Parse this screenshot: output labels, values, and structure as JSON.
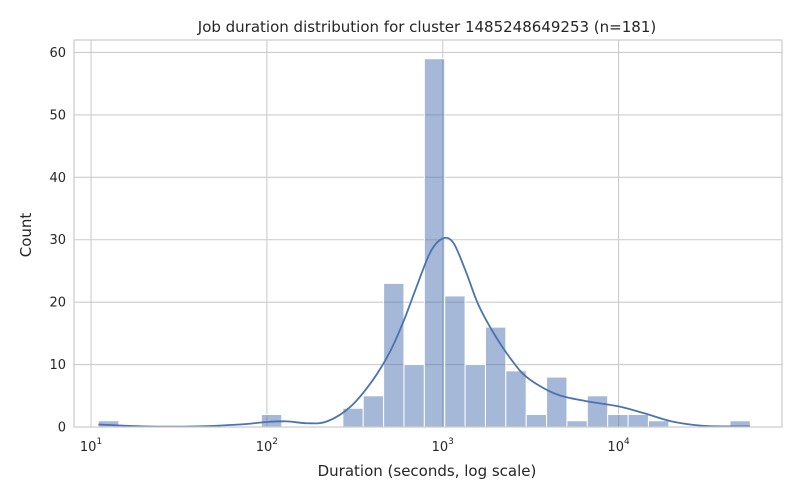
{
  "chart_data": {
    "type": "bar",
    "title": "Job duration distribution for cluster 1485248649253 (n=181)",
    "xlabel": "Duration (seconds, log scale)",
    "ylabel": "Count",
    "xscale": "log",
    "xlim": [
      8,
      85000
    ],
    "ylim": [
      0,
      62
    ],
    "x_ticks": [
      {
        "value": 10,
        "base": "10",
        "exp": "1"
      },
      {
        "value": 100,
        "base": "10",
        "exp": "2"
      },
      {
        "value": 1000,
        "base": "10",
        "exp": "3"
      },
      {
        "value": 10000,
        "base": "10",
        "exp": "4"
      }
    ],
    "y_ticks": [
      0,
      10,
      20,
      30,
      40,
      50,
      60
    ],
    "grid": true,
    "bar_color": "#4c72b0",
    "line_color": "#4c72b0",
    "bins": [
      {
        "x0": 11.0,
        "x1": 14.4,
        "count": 1
      },
      {
        "x0": 14.4,
        "x1": 18.8,
        "count": 0
      },
      {
        "x0": 18.8,
        "x1": 24.5,
        "count": 0
      },
      {
        "x0": 24.5,
        "x1": 32.0,
        "count": 0
      },
      {
        "x0": 32.0,
        "x1": 41.8,
        "count": 0
      },
      {
        "x0": 41.8,
        "x1": 54.6,
        "count": 0
      },
      {
        "x0": 54.6,
        "x1": 71.3,
        "count": 0
      },
      {
        "x0": 71.3,
        "x1": 93.0,
        "count": 0
      },
      {
        "x0": 93.0,
        "x1": 121.5,
        "count": 2
      },
      {
        "x0": 121.5,
        "x1": 158.6,
        "count": 0
      },
      {
        "x0": 158.6,
        "x1": 207.1,
        "count": 0
      },
      {
        "x0": 207.1,
        "x1": 270.4,
        "count": 0
      },
      {
        "x0": 270.4,
        "x1": 353.1,
        "count": 3
      },
      {
        "x0": 353.1,
        "x1": 461.1,
        "count": 5
      },
      {
        "x0": 461.1,
        "x1": 602.0,
        "count": 23
      },
      {
        "x0": 602.0,
        "x1": 786.1,
        "count": 10
      },
      {
        "x0": 786.1,
        "x1": 1026.4,
        "count": 59
      },
      {
        "x0": 1026.4,
        "x1": 1340.2,
        "count": 21
      },
      {
        "x0": 1340.2,
        "x1": 1750.0,
        "count": 10
      },
      {
        "x0": 1750.0,
        "x1": 2285.0,
        "count": 16
      },
      {
        "x0": 2285.0,
        "x1": 2984.0,
        "count": 9
      },
      {
        "x0": 2984.0,
        "x1": 3896.0,
        "count": 2
      },
      {
        "x0": 3896.0,
        "x1": 5087.0,
        "count": 8
      },
      {
        "x0": 5087.0,
        "x1": 6643.0,
        "count": 1
      },
      {
        "x0": 6643.0,
        "x1": 8674.0,
        "count": 5
      },
      {
        "x0": 8674.0,
        "x1": 11326.0,
        "count": 2
      },
      {
        "x0": 11326.0,
        "x1": 14790.0,
        "count": 2
      },
      {
        "x0": 14790.0,
        "x1": 19313.0,
        "count": 1
      },
      {
        "x0": 19313.0,
        "x1": 25218.0,
        "count": 0
      },
      {
        "x0": 25218.0,
        "x1": 32930.0,
        "count": 0
      },
      {
        "x0": 32930.0,
        "x1": 43000.0,
        "count": 0
      },
      {
        "x0": 43000.0,
        "x1": 56150.0,
        "count": 1
      }
    ],
    "kde": {
      "x": [
        11,
        20,
        40,
        70,
        100,
        130,
        170,
        220,
        300,
        400,
        500,
        600,
        700,
        850,
        1000,
        1150,
        1350,
        1600,
        2000,
        2500,
        3000,
        4000,
        5000,
        7000,
        10000,
        14000,
        20000,
        30000,
        45000,
        56000
      ],
      "y": [
        0.4,
        0.1,
        0.1,
        0.4,
        0.8,
        0.9,
        0.6,
        0.9,
        3.3,
        7.5,
        12.0,
        17.0,
        22.0,
        28.0,
        30.2,
        29.5,
        25.0,
        19.5,
        14.5,
        10.5,
        8.0,
        5.8,
        4.8,
        4.0,
        3.3,
        2.2,
        0.9,
        0.2,
        0.1,
        0.1
      ]
    }
  }
}
